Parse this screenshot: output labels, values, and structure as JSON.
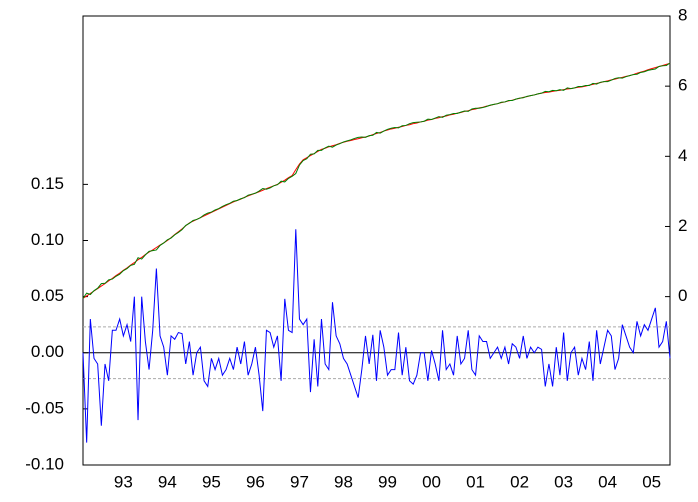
{
  "chart_data": {
    "type": "line",
    "categories": [
      null,
      null,
      null,
      null,
      null,
      null,
      null,
      null,
      null,
      null,
      null,
      "93",
      null,
      null,
      null,
      null,
      null,
      null,
      null,
      null,
      null,
      null,
      null,
      "94",
      null,
      null,
      null,
      null,
      null,
      null,
      null,
      null,
      null,
      null,
      null,
      "95",
      null,
      null,
      null,
      null,
      null,
      null,
      null,
      null,
      null,
      null,
      null,
      "96",
      null,
      null,
      null,
      null,
      null,
      null,
      null,
      null,
      null,
      null,
      null,
      "97",
      null,
      null,
      null,
      null,
      null,
      null,
      null,
      null,
      null,
      null,
      null,
      "98",
      null,
      null,
      null,
      null,
      null,
      null,
      null,
      null,
      null,
      null,
      null,
      "99",
      null,
      null,
      null,
      null,
      null,
      null,
      null,
      null,
      null,
      null,
      null,
      "00",
      null,
      null,
      null,
      null,
      null,
      null,
      null,
      null,
      null,
      null,
      null,
      "01",
      null,
      null,
      null,
      null,
      null,
      null,
      null,
      null,
      null,
      null,
      null,
      "02",
      null,
      null,
      null,
      null,
      null,
      null,
      null,
      null,
      null,
      null,
      null,
      "03",
      null,
      null,
      null,
      null,
      null,
      null,
      null,
      null,
      null,
      null,
      null,
      "04",
      null,
      null,
      null,
      null,
      null,
      null,
      null,
      null,
      null,
      null,
      null,
      "05",
      null,
      null,
      null,
      null,
      null
    ],
    "series": [
      {
        "color": "#0000ff",
        "values": [
          0.0,
          -0.08,
          0.03,
          -0.005,
          -0.01,
          -0.065,
          -0.01,
          -0.025,
          0.02,
          0.02,
          0.03,
          0.015,
          0.025,
          0.01,
          0.05,
          -0.06,
          0.05,
          0.01,
          -0.015,
          0.02,
          0.075,
          0.015,
          0.005,
          -0.02,
          0.015,
          0.012,
          0.018,
          0.017,
          -0.01,
          0.01,
          -0.02,
          0.0,
          0.005,
          -0.025,
          -0.03,
          -0.005,
          -0.015,
          -0.005,
          -0.02,
          -0.015,
          -0.005,
          -0.015,
          0.005,
          -0.01,
          0.01,
          -0.02,
          -0.01,
          0.005,
          -0.02,
          -0.052,
          0.02,
          0.018,
          0.005,
          0.015,
          -0.025,
          0.048,
          0.02,
          0.018,
          0.11,
          0.03,
          0.025,
          0.03,
          -0.035,
          0.012,
          -0.03,
          0.03,
          -0.01,
          -0.015,
          0.045,
          0.015,
          0.008,
          -0.005,
          -0.01,
          -0.02,
          -0.03,
          -0.04,
          -0.015,
          0.015,
          -0.01,
          0.016,
          -0.025,
          0.02,
          0.005,
          -0.02,
          -0.015,
          -0.015,
          0.018,
          -0.02,
          0.005,
          -0.025,
          -0.028,
          -0.02,
          0.0,
          0.0,
          -0.025,
          0.002,
          -0.01,
          -0.025,
          0.02,
          -0.015,
          -0.01,
          -0.02,
          0.015,
          -0.01,
          -0.005,
          0.02,
          -0.015,
          -0.02,
          0.015,
          0.01,
          0.01,
          -0.005,
          0.0,
          0.005,
          -0.005,
          0.005,
          -0.01,
          0.008,
          0.005,
          -0.005,
          0.015,
          -0.005,
          0.005,
          0.0,
          0.005,
          0.003,
          -0.03,
          -0.01,
          -0.03,
          0.005,
          -0.02,
          0.018,
          -0.025,
          0.0,
          0.005,
          -0.02,
          -0.005,
          -0.015,
          0.01,
          -0.025,
          0.02,
          -0.01,
          0.005,
          0.02,
          0.015,
          -0.015,
          -0.005,
          0.025,
          0.015,
          0.005,
          0.0,
          0.028,
          0.015,
          0.025,
          0.02,
          0.03,
          0.04,
          0.005,
          0.01,
          0.028,
          -0.005
        ]
      },
      {
        "color": "#ff0000",
        "axis": "y2",
        "values": [
          -0.05,
          0.02,
          0.09,
          0.16,
          0.23,
          0.3,
          0.37,
          0.45,
          0.52,
          0.6,
          0.67,
          0.75,
          0.82,
          0.9,
          0.97,
          1.05,
          1.12,
          1.2,
          1.27,
          1.33,
          1.4,
          1.47,
          1.53,
          1.6,
          1.68,
          1.77,
          1.85,
          1.93,
          2.02,
          2.1,
          2.15,
          2.2,
          2.25,
          2.3,
          2.35,
          2.4,
          2.45,
          2.5,
          2.55,
          2.6,
          2.65,
          2.7,
          2.74,
          2.78,
          2.83,
          2.87,
          2.91,
          2.95,
          2.99,
          3.03,
          3.08,
          3.12,
          3.16,
          3.2,
          3.26,
          3.32,
          3.39,
          3.45,
          3.62,
          3.78,
          3.9,
          3.96,
          4.02,
          4.08,
          4.14,
          4.2,
          4.23,
          4.27,
          4.3,
          4.33,
          4.37,
          4.4,
          4.43,
          4.45,
          4.48,
          4.5,
          4.53,
          4.55,
          4.58,
          4.62,
          4.65,
          4.68,
          4.72,
          4.75,
          4.78,
          4.8,
          4.83,
          4.85,
          4.88,
          4.9,
          4.93,
          4.95,
          4.98,
          5.0,
          5.03,
          5.05,
          5.08,
          5.1,
          5.13,
          5.15,
          5.18,
          5.2,
          5.23,
          5.25,
          5.28,
          5.3,
          5.33,
          5.35,
          5.38,
          5.4,
          5.43,
          5.45,
          5.48,
          5.5,
          5.53,
          5.55,
          5.58,
          5.6,
          5.63,
          5.65,
          5.68,
          5.7,
          5.73,
          5.75,
          5.78,
          5.8,
          5.82,
          5.83,
          5.85,
          5.87,
          5.88,
          5.9,
          5.92,
          5.93,
          5.95,
          5.97,
          5.98,
          6.0,
          6.03,
          6.05,
          6.08,
          6.1,
          6.13,
          6.15,
          6.18,
          6.2,
          6.23,
          6.25,
          6.28,
          6.3,
          6.33,
          6.37,
          6.4,
          6.43,
          6.47,
          6.5,
          6.53,
          6.56,
          6.59,
          6.62,
          6.65
        ]
      },
      {
        "color": "#008000",
        "axis": "y2",
        "values": [
          -0.05,
          0.1,
          0.06,
          0.17,
          0.24,
          0.37,
          0.38,
          0.48,
          0.5,
          0.58,
          0.64,
          0.74,
          0.8,
          0.89,
          0.92,
          1.11,
          1.07,
          1.19,
          1.29,
          1.31,
          1.33,
          1.46,
          1.53,
          1.62,
          1.67,
          1.76,
          1.83,
          1.91,
          2.03,
          2.09,
          2.17,
          2.2,
          2.25,
          2.33,
          2.38,
          2.41,
          2.47,
          2.51,
          2.57,
          2.62,
          2.66,
          2.72,
          2.74,
          2.79,
          2.82,
          2.89,
          2.92,
          2.95,
          3.01,
          3.08,
          3.06,
          3.1,
          3.16,
          3.19,
          3.29,
          3.27,
          3.37,
          3.43,
          3.51,
          3.75,
          3.88,
          3.93,
          4.06,
          4.07,
          4.17,
          4.17,
          4.24,
          4.29,
          4.26,
          4.32,
          4.36,
          4.41,
          4.44,
          4.47,
          4.51,
          4.54,
          4.55,
          4.54,
          4.59,
          4.6,
          4.68,
          4.66,
          4.72,
          4.77,
          4.8,
          4.82,
          4.81,
          4.87,
          4.88,
          4.93,
          4.96,
          4.97,
          4.98,
          5.0,
          5.06,
          5.05,
          5.09,
          5.13,
          5.11,
          5.17,
          5.19,
          5.22,
          5.22,
          5.26,
          5.29,
          5.28,
          5.35,
          5.37,
          5.37,
          5.39,
          5.42,
          5.46,
          5.48,
          5.5,
          5.54,
          5.55,
          5.59,
          5.59,
          5.63,
          5.66,
          5.67,
          5.71,
          5.73,
          5.75,
          5.78,
          5.8,
          5.85,
          5.84,
          5.88,
          5.87,
          5.9,
          5.88,
          5.95,
          5.93,
          5.95,
          5.99,
          5.99,
          6.02,
          6.02,
          6.08,
          6.06,
          6.11,
          6.13,
          6.13,
          6.17,
          6.22,
          6.24,
          6.23,
          6.27,
          6.3,
          6.33,
          6.34,
          6.39,
          6.41,
          6.45,
          6.47,
          6.49,
          6.56,
          6.58,
          6.59,
          6.66
        ]
      }
    ],
    "ylim": [
      -0.1,
      0.3
    ],
    "yticks": [
      {
        "value": -0.1,
        "label": "-0.10"
      },
      {
        "value": -0.05,
        "label": "-0.05"
      },
      {
        "value": 0,
        "label": "0.00"
      },
      {
        "value": 0.05,
        "label": "0.05"
      },
      {
        "value": 0.1,
        "label": "0.10"
      },
      {
        "value": 0.15,
        "label": "0.15"
      }
    ],
    "y2lim": [
      -4.8,
      8
    ],
    "y2ticks": [
      0,
      2,
      4,
      6,
      8
    ],
    "reference_lines": [
      0.023,
      -0.023
    ]
  }
}
